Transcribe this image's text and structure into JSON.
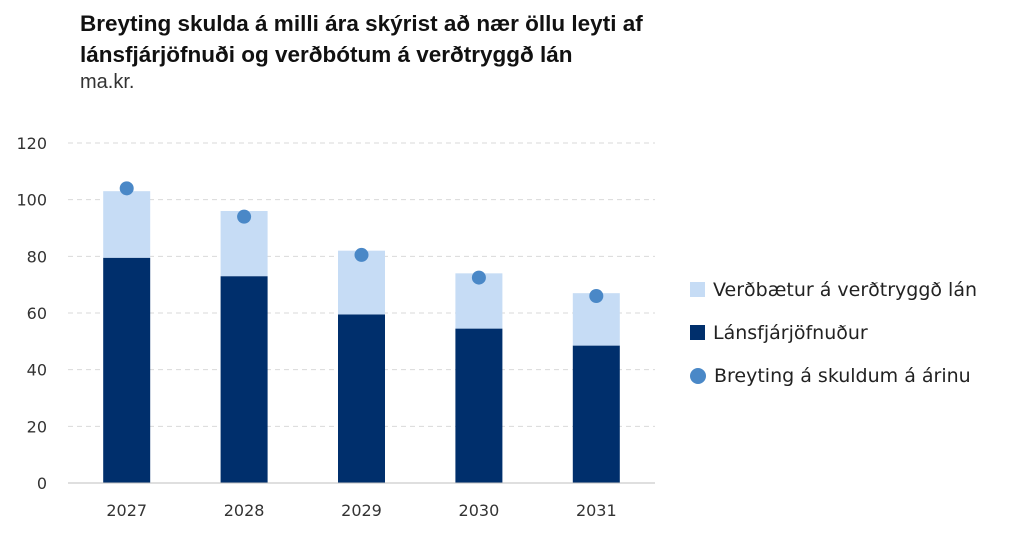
{
  "chart_data": {
    "type": "bar",
    "stacked": true,
    "title": "Breyting skulda á milli ára skýrist að nær öllu leyti af lánsfjárjöfnuði og verðbótum á verðtryggð lán",
    "subtitle": "ma.kr.",
    "categories": [
      "2027",
      "2028",
      "2029",
      "2030",
      "2031"
    ],
    "series": [
      {
        "name": "Lánsfjárjöfnuður",
        "kind": "bar",
        "color": "#002f6c",
        "values": [
          79.5,
          73,
          59.5,
          54.5,
          48.5
        ]
      },
      {
        "name": "Verðbætur á verðtryggð lán",
        "kind": "bar",
        "color": "#c6dcf5",
        "values": [
          23.5,
          23,
          22.5,
          19.5,
          18.5
        ]
      },
      {
        "name": "Breyting á skuldum á árinu",
        "kind": "point",
        "color": "#4a88c7",
        "values": [
          104,
          94,
          80.5,
          72.5,
          66
        ]
      }
    ],
    "ylim": [
      0,
      120
    ],
    "yticks": [
      0,
      20,
      40,
      60,
      80,
      100,
      120
    ],
    "grid": true,
    "legend_position": "right",
    "legend_order": [
      "Verðbætur á verðtryggð lán",
      "Lánsfjárjöfnuður",
      "Breyting á skuldum á árinu"
    ]
  }
}
